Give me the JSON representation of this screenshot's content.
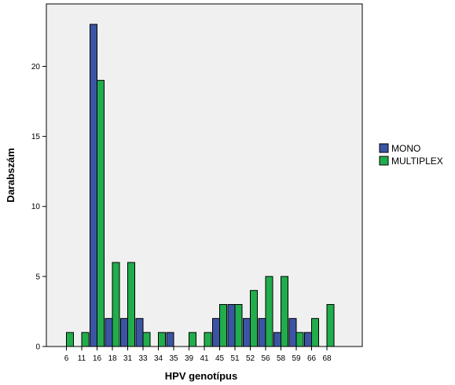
{
  "chart_data": {
    "type": "bar",
    "xlabel": "HPV genotípus",
    "ylabel": "Darabszám",
    "categories": [
      "6",
      "11",
      "16",
      "18",
      "31",
      "33",
      "34",
      "35",
      "39",
      "41",
      "45",
      "51",
      "52",
      "56",
      "58",
      "59",
      "66",
      "68"
    ],
    "series": [
      {
        "name": "MONO",
        "color": "#3b55a4",
        "values": [
          0,
          0,
          23,
          2,
          2,
          2,
          0,
          1,
          0,
          0,
          2,
          3,
          2,
          2,
          1,
          2,
          1,
          0
        ]
      },
      {
        "name": "MULTIPLEX",
        "color": "#22ad4c",
        "values": [
          1,
          1,
          19,
          6,
          6,
          1,
          1,
          0,
          1,
          1,
          3,
          3,
          4,
          5,
          5,
          1,
          2,
          3
        ]
      }
    ],
    "ylim": [
      0,
      25
    ],
    "yticks": [
      0,
      5,
      10,
      15,
      20
    ],
    "legend_position": "right",
    "grid": false,
    "plot_background": "#f0f0f0"
  }
}
